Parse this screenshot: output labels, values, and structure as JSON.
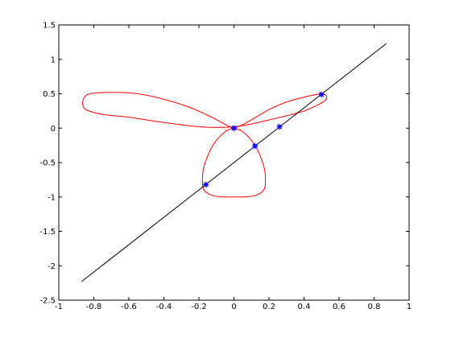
{
  "chart_data": {
    "type": "line",
    "title": "",
    "xlabel": "",
    "ylabel": "",
    "xlim": [
      -1,
      1
    ],
    "ylim": [
      -2.5,
      1.5
    ],
    "grid": false,
    "x_ticks": [
      -1,
      -0.8,
      -0.6,
      -0.4,
      -0.2,
      0,
      0.2,
      0.4,
      0.6,
      0.8,
      1
    ],
    "y_ticks": [
      -2.5,
      -2,
      -1.5,
      -1,
      -0.5,
      0,
      0.5,
      1,
      1.5
    ],
    "x_tick_labels": [
      "-1",
      "-0.8",
      "-0.6",
      "-0.4",
      "-0.2",
      "0",
      "0.2",
      "0.4",
      "0.6",
      "0.8",
      "1"
    ],
    "y_tick_labels": [
      "-2.5",
      "-2",
      "-1.5",
      "-1",
      "-0.5",
      "0",
      "0.5",
      "1",
      "1.5"
    ],
    "series": [
      {
        "kind": "curve",
        "color": "#ff0000",
        "x": [
          0,
          0.05,
          0.12,
          0.2,
          0.3,
          0.4,
          0.47,
          0.5,
          0.52,
          0.53,
          0.52,
          0.48,
          0.4,
          0.3,
          0.2,
          0.1,
          0,
          -0.1,
          -0.2,
          -0.3,
          -0.45,
          -0.6,
          -0.75,
          -0.85,
          -0.86,
          -0.82,
          -0.7,
          -0.55,
          -0.4,
          -0.25,
          -0.12,
          -0.04,
          0,
          0.05,
          0.12,
          0.17,
          0.18,
          0.17,
          0.12,
          0.05,
          0,
          -0.05,
          -0.12,
          -0.17,
          -0.18,
          -0.17,
          -0.12,
          -0.05,
          0
        ],
        "y": [
          0,
          0.05,
          0.15,
          0.27,
          0.38,
          0.45,
          0.49,
          0.5,
          0.49,
          0.45,
          0.4,
          0.34,
          0.25,
          0.18,
          0.12,
          0.06,
          0.02,
          0.01,
          0.02,
          0.05,
          0.1,
          0.16,
          0.2,
          0.28,
          0.42,
          0.5,
          0.52,
          0.5,
          0.42,
          0.3,
          0.15,
          0.04,
          0,
          -0.05,
          -0.25,
          -0.55,
          -0.75,
          -0.9,
          -0.98,
          -1.0,
          -1.0,
          -1.0,
          -0.98,
          -0.9,
          -0.75,
          -0.55,
          -0.25,
          -0.05,
          0
        ]
      },
      {
        "kind": "line",
        "color": "#000000",
        "x": [
          -0.87,
          0.87
        ],
        "y": [
          -2.23,
          1.23
        ]
      },
      {
        "kind": "markers",
        "marker": "*",
        "color": "#0000ff",
        "x": [
          -0.16,
          0,
          0.12,
          0.26,
          0.5
        ],
        "y": [
          -0.82,
          0,
          -0.26,
          0.02,
          0.49
        ]
      }
    ]
  }
}
